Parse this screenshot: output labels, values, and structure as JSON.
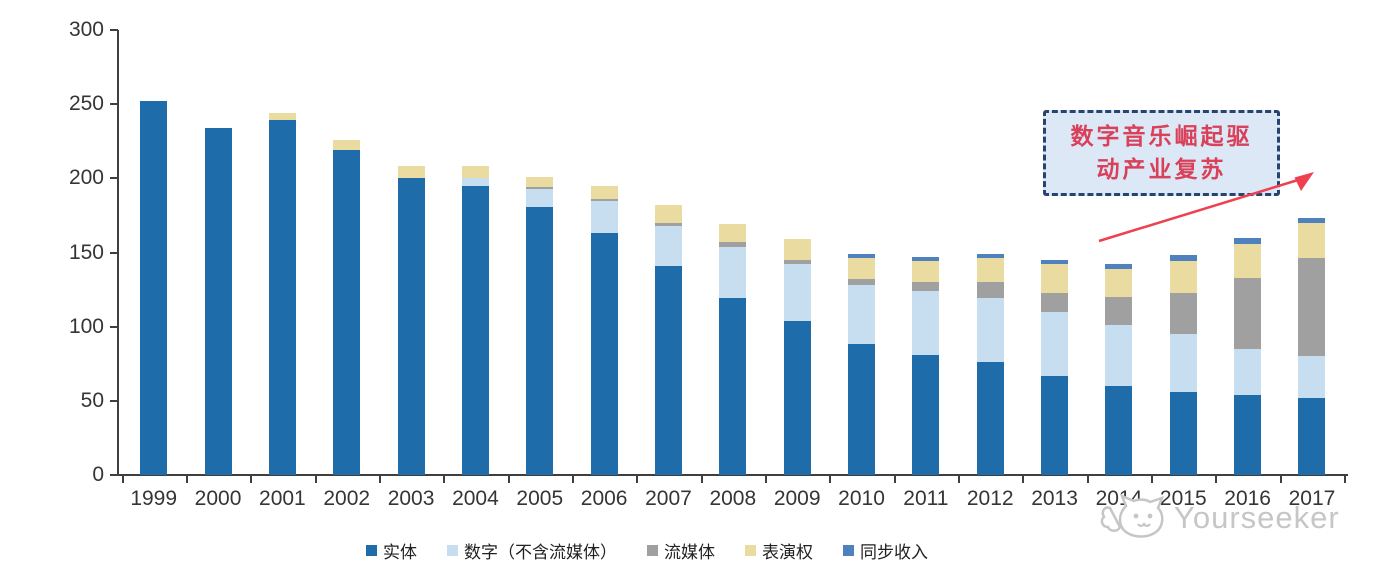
{
  "chart_data": {
    "type": "bar",
    "stacked": true,
    "title": "",
    "xlabel": "",
    "ylabel": "",
    "grid": false,
    "legend_position": "bottom",
    "ylim": [
      0,
      300
    ],
    "yticks": [
      0,
      50,
      100,
      150,
      200,
      250,
      300
    ],
    "categories": [
      "1999",
      "2000",
      "2001",
      "2002",
      "2003",
      "2004",
      "2005",
      "2006",
      "2007",
      "2008",
      "2009",
      "2010",
      "2011",
      "2012",
      "2013",
      "2014",
      "2015",
      "2016",
      "2017"
    ],
    "series": [
      {
        "key": "physical",
        "name": "实体",
        "color": "#1F6CAB",
        "values": [
          252,
          234,
          239,
          219,
          200,
          195,
          181,
          163,
          141,
          119,
          104,
          88,
          81,
          76,
          67,
          60,
          56,
          54,
          52
        ]
      },
      {
        "key": "digital",
        "name": "数字（不含流媒体）",
        "color": "#C7DEF1",
        "values": [
          0,
          0,
          0,
          0,
          0,
          5,
          12,
          22,
          27,
          35,
          38,
          40,
          43,
          43,
          43,
          41,
          39,
          31,
          28
        ]
      },
      {
        "key": "streaming",
        "name": "流媒体",
        "color": "#A0A0A0",
        "values": [
          0,
          0,
          0,
          0,
          0,
          0,
          1,
          1,
          2,
          3,
          3,
          4,
          6,
          11,
          13,
          19,
          28,
          48,
          66
        ]
      },
      {
        "key": "performance",
        "name": "表演权",
        "color": "#EADCA0",
        "values": [
          0,
          0,
          5,
          7,
          8,
          8,
          7,
          9,
          12,
          12,
          14,
          14,
          14,
          16,
          19,
          19,
          21,
          23,
          24
        ]
      },
      {
        "key": "sync",
        "name": "同步收入",
        "color": "#4E81BD",
        "values": [
          0,
          0,
          0,
          0,
          0,
          0,
          0,
          0,
          0,
          0,
          0,
          3,
          3,
          3,
          3,
          3,
          4,
          4,
          3
        ]
      }
    ]
  },
  "annotation": {
    "line1": "数字音乐崛起驱",
    "line2": "动产业复苏",
    "text_color": "#D9415A",
    "box_fill": "#DCE8F6",
    "box_border_color": "#27436F",
    "arrow_color": "#EF4050"
  },
  "watermark": {
    "text": "Yourseeker",
    "logo": "cat-face-icon",
    "color": "#C6C6C6"
  },
  "axis": {
    "line_color": "#3f3f3f",
    "label_color": "#353535"
  }
}
